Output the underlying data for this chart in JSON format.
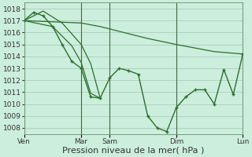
{
  "bg_color": "#cceedd",
  "grid_color": "#aaccbb",
  "line_color": "#2d6e2d",
  "marker_color": "#2d6e2d",
  "xlabel": "Pression niveau de la mer( hPa )",
  "xlabel_fontsize": 8,
  "tick_fontsize": 6.5,
  "ylim": [
    1007.5,
    1018.5
  ],
  "yticks": [
    1008,
    1009,
    1010,
    1011,
    1012,
    1013,
    1014,
    1015,
    1016,
    1017,
    1018
  ],
  "xtick_labels": [
    "Ven",
    "Mar",
    "Sam",
    "Dim",
    "Lun"
  ],
  "n_steps": 24,
  "series": [
    {
      "x": [
        0,
        6,
        8,
        13,
        16,
        20,
        23
      ],
      "y": [
        1017.0,
        1016.8,
        1016.5,
        1015.5,
        1015.0,
        1014.4,
        1014.2
      ],
      "marker": false,
      "lw": 0.9
    },
    {
      "x": [
        0,
        1,
        2,
        3,
        4,
        5,
        6,
        7,
        8,
        9,
        10,
        11,
        12,
        13,
        14,
        15,
        16,
        17,
        18,
        19,
        20,
        21,
        22,
        23
      ],
      "y": [
        1017.0,
        1017.7,
        1017.4,
        1016.5,
        1015.0,
        1013.6,
        1013.0,
        1010.6,
        1010.5,
        1012.2,
        1013.0,
        1012.8,
        1012.5,
        1009.0,
        1008.0,
        1007.7,
        1009.7,
        1010.6,
        1011.2,
        1011.2,
        1010.0,
        1012.9,
        1010.8,
        1014.2
      ],
      "marker": true,
      "lw": 1.0
    },
    {
      "x": [
        0,
        2,
        4,
        6,
        7,
        8
      ],
      "y": [
        1017.0,
        1017.8,
        1016.8,
        1015.0,
        1013.4,
        1010.5
      ],
      "marker": false,
      "lw": 0.9
    },
    {
      "x": [
        0,
        3,
        5,
        6,
        7,
        8
      ],
      "y": [
        1017.0,
        1016.5,
        1014.9,
        1013.5,
        1010.9,
        1010.5
      ],
      "marker": false,
      "lw": 0.9
    }
  ]
}
